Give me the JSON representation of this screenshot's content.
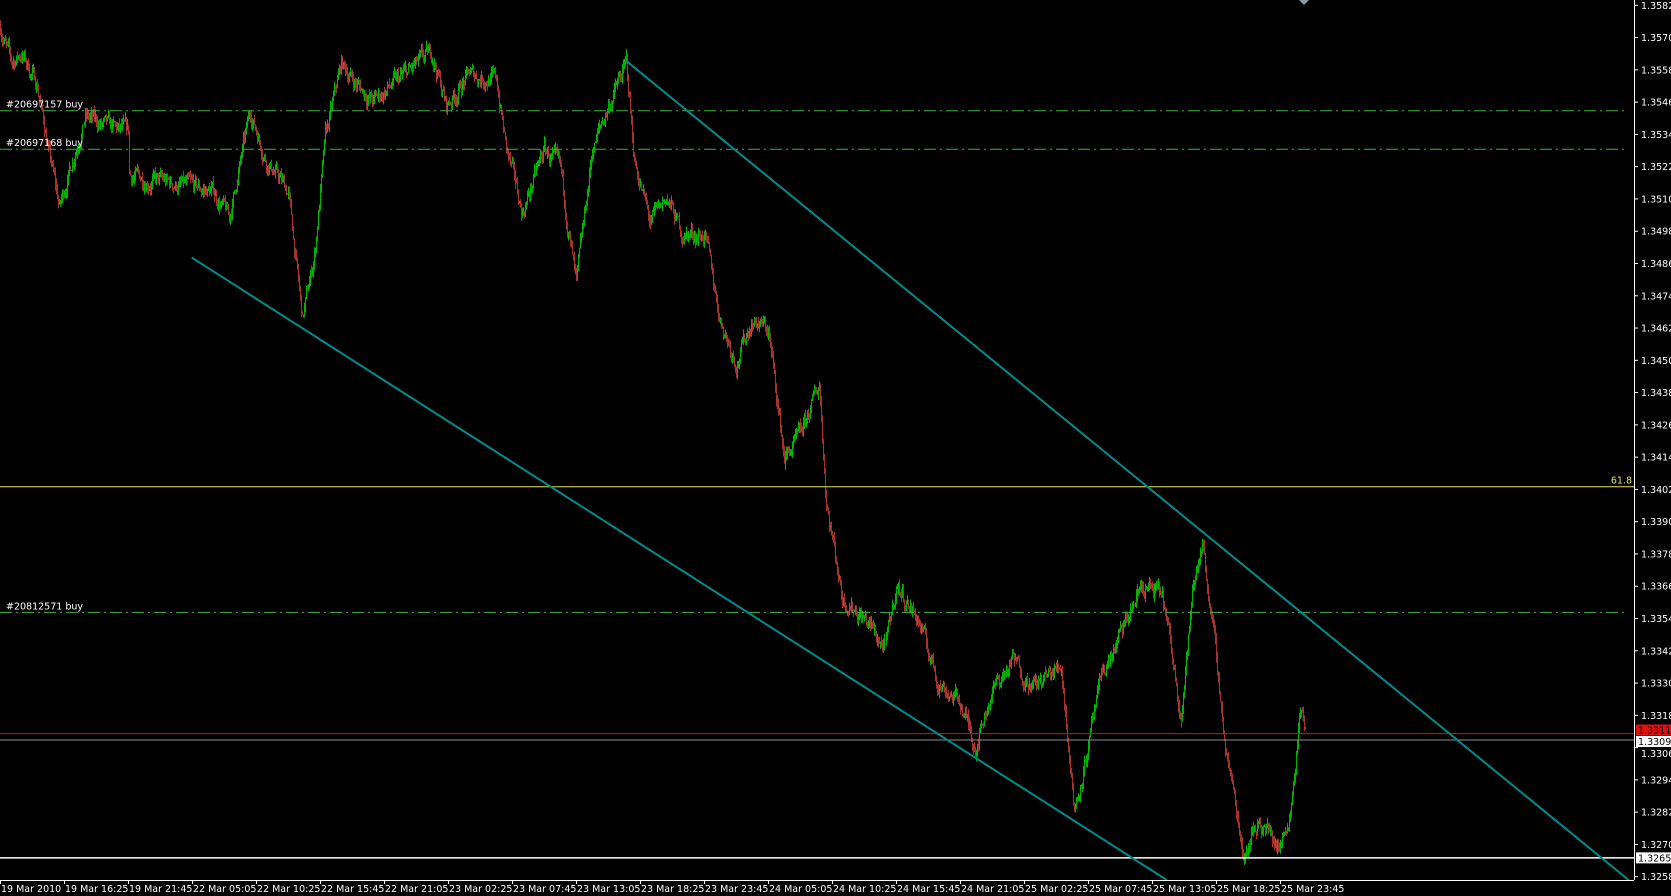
{
  "chart_data": {
    "type": "candlestick",
    "title": "",
    "colors": {
      "background": "#000000",
      "axis": "#ffffff",
      "bull": "#00c800",
      "bear": "#b83a32",
      "order_line": "#3cb43c",
      "fibo": "#e6e650",
      "channel": "#008c8c",
      "ask": "#e01010",
      "bid": "#8c8c96",
      "level": "#ffffff"
    },
    "y_ticks": [
      "1.35825",
      "1.35705",
      "1.35585",
      "1.35465",
      "1.35345",
      "1.35225",
      "1.35105",
      "1.34985",
      "1.34865",
      "1.34745",
      "1.34625",
      "1.34505",
      "1.34385",
      "1.34265",
      "1.34145",
      "1.34025",
      "1.33905",
      "1.33785",
      "1.33665",
      "1.33545",
      "1.33425",
      "1.33305",
      "1.33185",
      "1.33065",
      "1.32945",
      "1.32825",
      "1.32705",
      "1.32585"
    ],
    "ylim": [
      1.32585,
      1.35825
    ],
    "x_ticks": [
      "19 Mar 2010",
      "19 Mar 16:25",
      "19 Mar 21:45",
      "22 Mar 05:05",
      "22 Mar 10:25",
      "22 Mar 15:45",
      "22 Mar 21:05",
      "23 Mar 02:25",
      "23 Mar 07:45",
      "23 Mar 13:05",
      "23 Mar 18:25",
      "23 Mar 23:45",
      "24 Mar 05:05",
      "24 Mar 10:25",
      "24 Mar 15:45",
      "24 Mar 21:05",
      "25 Mar 02:25",
      "25 Mar 07:45",
      "25 Mar 13:05",
      "25 Mar 18:25",
      "25 Mar 23:45"
    ],
    "first_bar_time": "19 Mar 11:05",
    "bar_minutes": 5,
    "price_path": [
      [
        "19 Mar 11:05",
        1.35746
      ],
      [
        "19 Mar 12:00",
        1.35607
      ],
      [
        "19 Mar 12:50",
        1.35647
      ],
      [
        "19 Mar 14:10",
        1.35528
      ],
      [
        "19 Mar 15:05",
        1.3529
      ],
      [
        "19 Mar 16:00",
        1.35073
      ],
      [
        "19 Mar 17:20",
        1.3529
      ],
      [
        "19 Mar 18:10",
        1.35409
      ],
      [
        "19 Mar 20:00",
        1.3537
      ],
      [
        "19 Mar 21:45",
        1.3535
      ],
      [
        "19 Mar 22:40",
        1.35191
      ],
      [
        "22 Mar 06:50",
        1.35132
      ],
      [
        "22 Mar 08:10",
        1.35033
      ],
      [
        "22 Mar 09:55",
        1.35429
      ],
      [
        "22 Mar 11:15",
        1.35251
      ],
      [
        "22 Mar 13:05",
        1.35132
      ],
      [
        "22 Mar 14:15",
        1.34657
      ],
      [
        "22 Mar 15:15",
        1.34894
      ],
      [
        "22 Mar 16:10",
        1.3533
      ],
      [
        "22 Mar 17:30",
        1.35607
      ],
      [
        "22 Mar 18:50",
        1.35528
      ],
      [
        "22 Mar 20:10",
        1.35469
      ],
      [
        "22 Mar 22:50",
        1.35568
      ],
      [
        "23 Mar 01:05",
        1.35647
      ],
      [
        "23 Mar 02:15",
        1.35449
      ],
      [
        "23 Mar 04:10",
        1.35568
      ],
      [
        "23 Mar 06:25",
        1.35548
      ],
      [
        "23 Mar 07:15",
        1.3529
      ],
      [
        "23 Mar 08:35",
        1.35053
      ],
      [
        "23 Mar 10:25",
        1.3529
      ],
      [
        "23 Mar 11:45",
        1.35211
      ],
      [
        "23 Mar 13:05",
        1.34776
      ],
      [
        "23 Mar 14:25",
        1.3529
      ],
      [
        "23 Mar 15:45",
        1.35449
      ],
      [
        "23 Mar 17:15",
        1.35607
      ],
      [
        "23 Mar 17:55",
        1.35251
      ],
      [
        "23 Mar 19:15",
        1.35013
      ],
      [
        "23 Mar 20:35",
        1.35112
      ],
      [
        "23 Mar 21:55",
        1.34974
      ],
      [
        "23 Mar 23:45",
        1.34974
      ],
      [
        "24 Mar 01:05",
        1.34657
      ],
      [
        "24 Mar 02:25",
        1.34498
      ],
      [
        "24 Mar 03:45",
        1.34657
      ],
      [
        "24 Mar 05:05",
        1.34617
      ],
      [
        "24 Mar 06:25",
        1.34142
      ],
      [
        "24 Mar 07:45",
        1.34221
      ],
      [
        "24 Mar 09:20",
        1.34419
      ],
      [
        "24 Mar 09:55",
        1.33983
      ],
      [
        "24 Mar 11:15",
        1.33627
      ],
      [
        "24 Mar 13:05",
        1.33548
      ],
      [
        "24 Mar 14:50",
        1.33429
      ],
      [
        "24 Mar 15:45",
        1.33667
      ],
      [
        "24 Mar 17:30",
        1.33548
      ],
      [
        "24 Mar 19:15",
        1.3331
      ],
      [
        "24 Mar 21:05",
        1.33231
      ],
      [
        "24 Mar 22:20",
        1.33073
      ],
      [
        "24 Mar 23:40",
        1.33271
      ],
      [
        "25 Mar 01:30",
        1.33389
      ],
      [
        "25 Mar 03:15",
        1.33291
      ],
      [
        "25 Mar 05:30",
        1.3337
      ],
      [
        "25 Mar 06:35",
        1.32835
      ],
      [
        "25 Mar 07:45",
        1.33073
      ],
      [
        "25 Mar 09:00",
        1.3335
      ],
      [
        "25 Mar 10:20",
        1.33469
      ],
      [
        "25 Mar 12:10",
        1.33667
      ],
      [
        "25 Mar 13:55",
        1.33627
      ],
      [
        "25 Mar 15:30",
        1.33192
      ],
      [
        "25 Mar 16:25",
        1.33627
      ],
      [
        "25 Mar 17:15",
        1.33845
      ],
      [
        "25 Mar 18:25",
        1.33389
      ],
      [
        "25 Mar 19:10",
        1.33073
      ],
      [
        "25 Mar 20:40",
        1.32677
      ],
      [
        "25 Mar 22:00",
        1.32796
      ],
      [
        "25 Mar 23:45",
        1.32697
      ],
      [
        "26 Mar 00:35",
        1.32835
      ],
      [
        "26 Mar 01:25",
        1.33211
      ],
      [
        "26 Mar 01:50",
        1.33112
      ]
    ],
    "order_lines": [
      {
        "label": "#20697157 buy",
        "price": 1.35433
      },
      {
        "label": "#20697168 buy",
        "price": 1.3529
      },
      {
        "label": "#20812571 buy",
        "price": 1.33568
      }
    ],
    "fibo_level": {
      "label": "61.8",
      "price": 1.34035
    },
    "ask": {
      "label": "1.33117",
      "price": 1.33117
    },
    "bid": {
      "label": "1.33097",
      "price": 1.33097
    },
    "level_line": {
      "label": "1.32655",
      "price": 1.32655
    },
    "channel_lines": [
      {
        "p1": [
          "23 Mar 17:15",
          1.35619
        ],
        "p2": [
          "25 Mar 12:35",
          1.34039
        ],
        "extend": "right"
      },
      {
        "p1": [
          "22 Mar 04:50",
          1.34887
        ],
        "p2": [
          "23 Mar 10:50",
          1.34039
        ],
        "extend": "right"
      }
    ],
    "shift_marker_icon": "triangle-down-icon"
  }
}
